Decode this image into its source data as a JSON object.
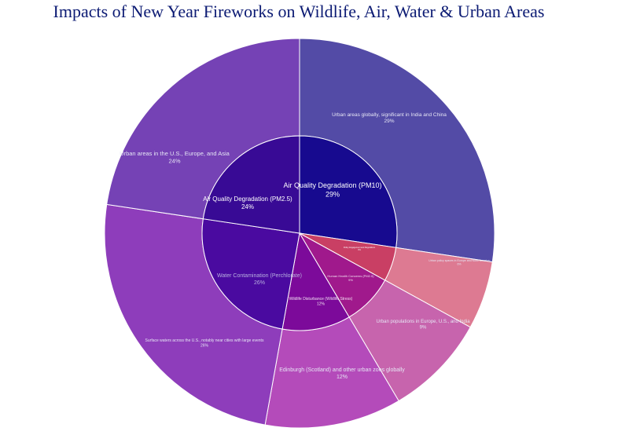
{
  "chart_data": {
    "type": "sunburst",
    "title": "Impacts of New Year Fireworks on Wildlife, Air, Water & Urban Areas",
    "inner": [
      {
        "label": "Air Quality Degradation (PM10)",
        "value": 29,
        "pct": "29%",
        "color": "#170a8f"
      },
      {
        "label": "Wildlife Disturbance (Wildlife Stress)",
        "value": 12,
        "pct": "12%",
        "color": "#7c0a9a"
      },
      {
        "label": "Water Contamination (Perchlorate)",
        "value": 26,
        "pct": "26%",
        "color": "#4a0aa0"
      },
      {
        "label": "Air Quality Degradation (PM2.5)",
        "value": 24,
        "pct": "24%",
        "color": "#380a95"
      },
      {
        "label": "Human Health Concerns (PM2.5)",
        "value": 9,
        "pct": "9%",
        "color": "#a0198c"
      }
    ],
    "inner_extra": [
      {
        "label": "Policy Engagement and Regulations",
        "value": 0,
        "pct": "0%",
        "color": "#c93f64"
      }
    ],
    "outer": [
      {
        "label": "Urban areas globally, significant in India and China",
        "value": 29,
        "pct": "29%",
        "color": "#534ba6"
      },
      {
        "label": "Urban policy spaces in Europe and North America",
        "value": 6,
        "pct": "6%",
        "color": "#dd7a92"
      },
      {
        "label": "Urban populations in Europe, U.S., and India",
        "value": 9,
        "pct": "9%",
        "color": "#c764ad"
      },
      {
        "label": "Edinburgh (Scotland) and other urban zoos globally",
        "value": 12,
        "pct": "12%",
        "color": "#b44bba"
      },
      {
        "label": "Surface waters across the U.S., notably near cities with large events",
        "value": 26,
        "pct": "26%",
        "color": "#8e3dbb"
      },
      {
        "label": "Urban areas in the U.S., Europe, and Asia",
        "value": 24,
        "pct": "24%",
        "color": "#7542b5"
      }
    ]
  }
}
